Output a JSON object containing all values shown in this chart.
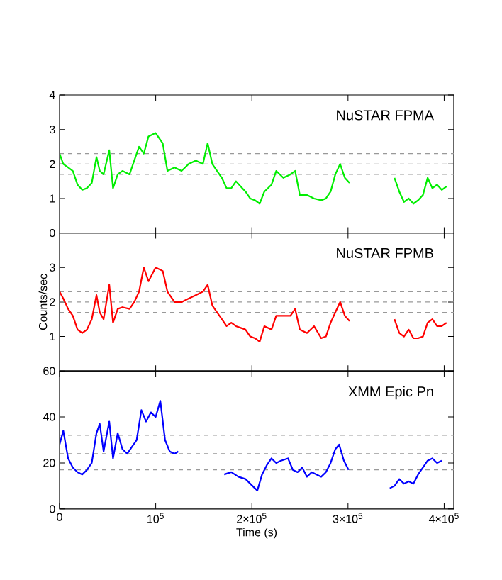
{
  "chart_data": [
    {
      "type": "line",
      "annotations": [
        "NuSTAR  FPMA"
      ],
      "xlim": [
        0,
        410000
      ],
      "ylim": [
        0,
        4
      ],
      "xticks": [
        {
          "value": 100000,
          "label": null
        },
        {
          "value": 200000,
          "label": null
        },
        {
          "value": 300000,
          "label": null
        },
        {
          "value": 400000,
          "label": null
        }
      ],
      "yticks": [
        0,
        1,
        2,
        3,
        4
      ],
      "tick_labels": "y",
      "marker": "none",
      "ref_lines": [
        {
          "axis": "y",
          "value": 2.3,
          "color": "#999999",
          "line_style": "dashed"
        },
        {
          "axis": "y",
          "value": 2.0,
          "color": "#999999",
          "line_style": "dashed"
        },
        {
          "axis": "y",
          "value": 1.7,
          "color": "#999999",
          "line_style": "dashed"
        }
      ],
      "x": [
        0,
        3900,
        8900,
        13800,
        18700,
        23600,
        28500,
        33500,
        38400,
        41800,
        45800,
        51700,
        55600,
        60500,
        65400,
        72800,
        77700,
        82700,
        87600,
        92500,
        99900,
        107300,
        112200,
        119600,
        126900,
        134300,
        141700,
        149100,
        154000,
        158900,
        163800,
        168800,
        173700,
        178600,
        183500,
        188400,
        193400,
        198300,
        203200,
        208100,
        213000,
        220400,
        225300,
        232700,
        240100,
        245000,
        249900,
        257300,
        264700,
        272100,
        277000,
        281900,
        286800,
        291800,
        296700,
        301600,
        325000,
        348300,
        353300,
        358200,
        363100,
        368000,
        372900,
        377900,
        382800,
        387700,
        392600,
        397500,
        402500
      ],
      "series": [
        {
          "color": "#00ee00",
          "values": [
            2.3,
            2.0,
            1.9,
            1.8,
            1.4,
            1.25,
            1.3,
            1.45,
            2.2,
            1.8,
            1.7,
            2.4,
            1.3,
            1.7,
            1.8,
            1.7,
            2.1,
            2.5,
            2.3,
            2.8,
            2.9,
            2.6,
            1.8,
            1.9,
            1.8,
            2.0,
            2.1,
            2.0,
            2.6,
            2.0,
            1.8,
            1.6,
            1.3,
            1.3,
            1.5,
            1.35,
            1.2,
            1.0,
            0.95,
            0.85,
            1.2,
            1.4,
            1.8,
            1.6,
            1.7,
            1.8,
            1.1,
            1.1,
            1.0,
            0.95,
            1.0,
            1.2,
            1.7,
            2.0,
            1.6,
            1.45,
            null,
            1.6,
            1.2,
            0.9,
            1.0,
            0.85,
            0.95,
            1.1,
            1.6,
            1.3,
            1.4,
            1.25,
            1.35
          ]
        }
      ]
    },
    {
      "type": "line",
      "annotations": [
        "NuSTAR  FPMB"
      ],
      "ylabel": "Counts/sec",
      "xlim": [
        0,
        410000
      ],
      "ylim": [
        0,
        4
      ],
      "xticks": [
        {
          "value": 100000,
          "label": null
        },
        {
          "value": 200000,
          "label": null
        },
        {
          "value": 300000,
          "label": null
        },
        {
          "value": 400000,
          "label": null
        }
      ],
      "yticks": [
        1,
        2,
        3
      ],
      "tick_labels": "y",
      "marker": "none",
      "ref_lines": [
        {
          "axis": "y",
          "value": 2.3,
          "color": "#999999",
          "line_style": "dashed"
        },
        {
          "axis": "y",
          "value": 2.0,
          "color": "#999999",
          "line_style": "dashed"
        },
        {
          "axis": "y",
          "value": 1.7,
          "color": "#999999",
          "line_style": "dashed"
        }
      ],
      "x": [
        0,
        3900,
        8900,
        13800,
        18700,
        23600,
        28500,
        33500,
        38400,
        41800,
        45800,
        51700,
        55600,
        60500,
        65400,
        72800,
        77700,
        82700,
        87600,
        92500,
        99900,
        107300,
        112200,
        119600,
        126900,
        134300,
        141700,
        149100,
        154000,
        158900,
        163800,
        168800,
        173700,
        178600,
        183500,
        188400,
        193400,
        198300,
        203200,
        208100,
        213000,
        220400,
        225300,
        232700,
        240100,
        245000,
        249900,
        257300,
        264700,
        272100,
        277000,
        281900,
        286800,
        291800,
        296700,
        301600,
        325000,
        348300,
        353300,
        358200,
        363100,
        368000,
        372900,
        377900,
        382800,
        387700,
        392600,
        397500,
        402500
      ],
      "series": [
        {
          "color": "#ff0000",
          "values": [
            2.3,
            2.1,
            1.8,
            1.6,
            1.2,
            1.1,
            1.2,
            1.5,
            2.2,
            1.7,
            1.5,
            2.5,
            1.4,
            1.8,
            1.85,
            1.8,
            2.0,
            2.3,
            3.0,
            2.6,
            3.0,
            2.9,
            2.3,
            2.0,
            2.0,
            2.1,
            2.2,
            2.3,
            2.5,
            1.9,
            1.7,
            1.5,
            1.3,
            1.4,
            1.3,
            1.25,
            1.2,
            1.0,
            0.95,
            0.85,
            1.3,
            1.2,
            1.6,
            1.6,
            1.6,
            1.8,
            1.2,
            1.1,
            1.3,
            0.95,
            1.0,
            1.4,
            1.7,
            2.0,
            1.6,
            1.45,
            null,
            1.5,
            1.1,
            1.0,
            1.2,
            0.95,
            0.95,
            1.0,
            1.4,
            1.5,
            1.3,
            1.3,
            1.4
          ]
        }
      ]
    },
    {
      "type": "line",
      "annotations": [
        "XMM  Epic  Pn"
      ],
      "xlabel": "Time (s)",
      "xlim": [
        0,
        410000
      ],
      "ylim": [
        0,
        60
      ],
      "xticks": [
        0,
        {
          "value": 100000,
          "label": "10$^{5}$"
        },
        {
          "value": 200000,
          "label": "2×10$^{5}$"
        },
        {
          "value": 300000,
          "label": "3×10$^{5}$"
        },
        {
          "value": 400000,
          "label": "4×10$^{5}$"
        }
      ],
      "yticks": [
        0,
        20,
        40,
        60
      ],
      "marker": "none",
      "ref_lines": [
        {
          "axis": "y",
          "value": 32,
          "color": "#999999",
          "line_style": "dashed"
        },
        {
          "axis": "y",
          "value": 24,
          "color": "#999999",
          "line_style": "dashed"
        },
        {
          "axis": "y",
          "value": 17,
          "color": "#999999",
          "line_style": "dashed"
        }
      ],
      "x": [
        0,
        3900,
        8900,
        13800,
        18700,
        23600,
        28500,
        33500,
        38400,
        41800,
        45800,
        51700,
        55600,
        60500,
        65400,
        70400,
        75300,
        80200,
        85100,
        90000,
        95000,
        99900,
        104800,
        109700,
        114600,
        119600,
        123500,
        150000,
        171200,
        178600,
        186000,
        193400,
        200700,
        205700,
        210600,
        215500,
        220400,
        225300,
        230300,
        237600,
        242600,
        247500,
        252400,
        257300,
        262200,
        267200,
        272100,
        277000,
        281900,
        286800,
        290800,
        295700,
        300600,
        320000,
        343400,
        348300,
        353300,
        358200,
        363100,
        368000,
        372900,
        377900,
        382800,
        387700,
        392600,
        397500
      ],
      "series": [
        {
          "color": "#0000ff",
          "values": [
            28,
            34,
            22,
            18,
            16,
            15,
            17,
            20,
            33,
            37,
            25,
            38,
            22,
            33,
            26,
            24,
            27,
            30,
            43,
            38,
            42,
            40,
            47,
            30,
            25,
            24,
            25,
            null,
            15,
            16,
            14,
            13,
            10,
            8,
            15,
            19,
            22,
            20,
            21,
            22,
            17,
            16,
            18,
            14,
            16,
            15,
            14,
            16,
            20,
            26,
            28,
            21,
            17,
            null,
            9,
            10,
            13,
            11,
            12,
            11,
            15,
            18,
            21,
            22,
            20,
            21
          ]
        }
      ]
    }
  ]
}
